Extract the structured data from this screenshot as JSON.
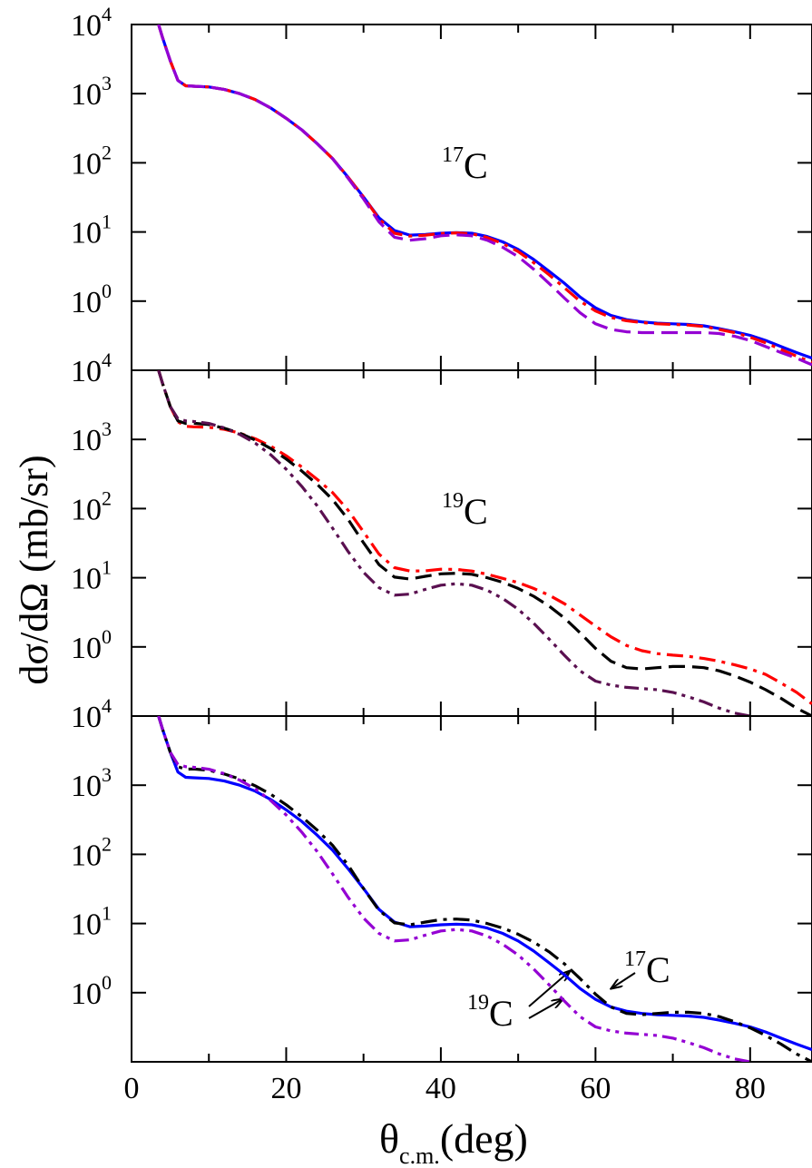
{
  "chart_data": [
    {
      "type": "line",
      "panel": "top",
      "annotation": {
        "superscript": "17",
        "text": "C"
      },
      "yscale": "log",
      "ylim": [
        0.1,
        10000
      ],
      "xlim": [
        0,
        88
      ],
      "y_tick_labels": [
        {
          "base": "10",
          "exp": "4"
        },
        {
          "base": "10",
          "exp": "3"
        },
        {
          "base": "10",
          "exp": "2"
        },
        {
          "base": "10",
          "exp": "1"
        },
        {
          "base": "10",
          "exp": "0"
        }
      ],
      "series": [
        {
          "color": "#0000ff",
          "style": "solid",
          "x": [
            3.5,
            4,
            5,
            6,
            7,
            8,
            10,
            12,
            14,
            16,
            18,
            20,
            22,
            24,
            26,
            28,
            30,
            32,
            34,
            36,
            38,
            40,
            42,
            44,
            46,
            48,
            50,
            52,
            54,
            56,
            58,
            60,
            62,
            64,
            66,
            68,
            70,
            72,
            74,
            76,
            78,
            80,
            82,
            84,
            86,
            88
          ],
          "y": [
            10000,
            6500,
            3000,
            1550,
            1300,
            1280,
            1250,
            1150,
            1000,
            820,
            620,
            440,
            300,
            190,
            115,
            62,
            32,
            16,
            10.5,
            9.0,
            9.2,
            9.6,
            9.8,
            9.6,
            8.6,
            7.2,
            5.6,
            4.0,
            2.7,
            1.8,
            1.15,
            0.8,
            0.62,
            0.54,
            0.5,
            0.48,
            0.47,
            0.46,
            0.44,
            0.4,
            0.36,
            0.32,
            0.27,
            0.22,
            0.18,
            0.15
          ]
        },
        {
          "color": "#ff0000",
          "style": "dash-dot",
          "x": [
            3.5,
            4,
            5,
            6,
            7,
            8,
            10,
            12,
            14,
            16,
            18,
            20,
            22,
            24,
            26,
            28,
            30,
            32,
            34,
            36,
            38,
            40,
            42,
            44,
            46,
            48,
            50,
            52,
            54,
            56,
            58,
            60,
            62,
            64,
            66,
            68,
            70,
            72,
            74,
            76,
            78,
            80,
            82,
            84,
            86,
            88
          ],
          "y": [
            10000,
            6500,
            3000,
            1550,
            1300,
            1280,
            1250,
            1150,
            1000,
            820,
            620,
            440,
            300,
            190,
            115,
            62,
            32,
            15.5,
            9.6,
            8.7,
            9.0,
            9.5,
            9.7,
            9.4,
            8.3,
            6.8,
            5.2,
            3.6,
            2.4,
            1.55,
            1.0,
            0.72,
            0.58,
            0.52,
            0.49,
            0.47,
            0.46,
            0.45,
            0.43,
            0.39,
            0.35,
            0.3,
            0.25,
            0.2,
            0.16,
            0.13
          ]
        },
        {
          "color": "#9400d3",
          "style": "dashed",
          "x": [
            3.5,
            4,
            5,
            6,
            7,
            8,
            10,
            12,
            14,
            16,
            18,
            20,
            22,
            24,
            26,
            28,
            30,
            32,
            34,
            36,
            38,
            40,
            42,
            44,
            46,
            48,
            50,
            52,
            54,
            56,
            58,
            60,
            62,
            64,
            66,
            68,
            70,
            72,
            74,
            76,
            78,
            80,
            82,
            84,
            86,
            88
          ],
          "y": [
            10000,
            6500,
            3000,
            1550,
            1300,
            1280,
            1250,
            1150,
            1000,
            820,
            620,
            440,
            300,
            190,
            115,
            60,
            30,
            14,
            8.4,
            7.6,
            8.0,
            8.8,
            9.1,
            8.8,
            7.6,
            6.0,
            4.4,
            2.9,
            1.8,
            1.1,
            0.68,
            0.47,
            0.39,
            0.36,
            0.35,
            0.35,
            0.35,
            0.35,
            0.35,
            0.34,
            0.31,
            0.27,
            0.22,
            0.18,
            0.15,
            0.12
          ]
        }
      ]
    },
    {
      "type": "line",
      "panel": "middle",
      "annotation": {
        "superscript": "19",
        "text": "C"
      },
      "yscale": "log",
      "ylim": [
        0.1,
        10000
      ],
      "xlim": [
        0,
        88
      ],
      "y_tick_labels": [
        {
          "base": "10",
          "exp": "4"
        },
        {
          "base": "10",
          "exp": "3"
        },
        {
          "base": "10",
          "exp": "2"
        },
        {
          "base": "10",
          "exp": "1"
        },
        {
          "base": "10",
          "exp": "0"
        }
      ],
      "series": [
        {
          "color": "#ff0000",
          "style": "dash-dot",
          "x": [
            3.5,
            4,
            5,
            6,
            7,
            8,
            10,
            12,
            14,
            16,
            18,
            20,
            22,
            24,
            26,
            28,
            30,
            32,
            34,
            36,
            38,
            40,
            42,
            44,
            46,
            48,
            50,
            52,
            54,
            56,
            58,
            60,
            62,
            64,
            66,
            68,
            70,
            72,
            74,
            76,
            78,
            80,
            82,
            84,
            86,
            88
          ],
          "y": [
            10000,
            6500,
            3000,
            1800,
            1550,
            1520,
            1500,
            1400,
            1230,
            1020,
            800,
            580,
            400,
            265,
            170,
            95,
            46,
            22,
            14,
            12.5,
            12.6,
            13.3,
            13.2,
            12.5,
            11.2,
            9.8,
            8.5,
            7.0,
            5.6,
            4.2,
            2.9,
            2.0,
            1.4,
            1.05,
            0.88,
            0.8,
            0.76,
            0.73,
            0.68,
            0.62,
            0.55,
            0.48,
            0.4,
            0.3,
            0.22,
            0.15
          ]
        },
        {
          "color": "#000000",
          "style": "dashed",
          "x": [
            3.5,
            4,
            5,
            6,
            7,
            8,
            10,
            12,
            14,
            16,
            18,
            20,
            22,
            24,
            26,
            28,
            30,
            32,
            34,
            36,
            38,
            40,
            42,
            44,
            46,
            48,
            50,
            52,
            54,
            56,
            58,
            60,
            62,
            64,
            66,
            68,
            70,
            72,
            74,
            76,
            78,
            80,
            82,
            84,
            86,
            88
          ],
          "y": [
            10000,
            6500,
            3000,
            1850,
            1700,
            1720,
            1640,
            1450,
            1230,
            980,
            740,
            520,
            350,
            225,
            135,
            70,
            32,
            15.5,
            10.2,
            9.6,
            10.5,
            11.4,
            11.6,
            11.2,
            10.0,
            8.6,
            7.0,
            5.4,
            3.9,
            2.6,
            1.6,
            0.95,
            0.62,
            0.5,
            0.48,
            0.5,
            0.52,
            0.52,
            0.5,
            0.45,
            0.38,
            0.31,
            0.24,
            0.18,
            0.13,
            0.1
          ]
        },
        {
          "color": "#5a1050",
          "style": "dash-dot-dot",
          "x": [
            3.5,
            4,
            5,
            6,
            7,
            8,
            10,
            12,
            14,
            16,
            18,
            20,
            22,
            24,
            26,
            28,
            30,
            32,
            34,
            36,
            38,
            40,
            42,
            44,
            46,
            48,
            50,
            52,
            54,
            56,
            58,
            60,
            62,
            64,
            66,
            68,
            70,
            72,
            74,
            76,
            78,
            80
          ],
          "y": [
            10000,
            6500,
            3000,
            2000,
            1850,
            1820,
            1700,
            1470,
            1180,
            880,
            600,
            370,
            210,
            110,
            52,
            24,
            12,
            7.2,
            5.6,
            5.8,
            6.8,
            7.8,
            8.2,
            7.8,
            6.6,
            5.0,
            3.5,
            2.2,
            1.3,
            0.75,
            0.45,
            0.32,
            0.28,
            0.26,
            0.25,
            0.24,
            0.22,
            0.19,
            0.16,
            0.13,
            0.11,
            0.1
          ]
        }
      ]
    },
    {
      "type": "line",
      "panel": "bottom",
      "annotations": [
        {
          "superscript": "17",
          "text": "C"
        },
        {
          "superscript": "19",
          "text": "C"
        }
      ],
      "yscale": "log",
      "ylim": [
        0.1,
        10000
      ],
      "xlim": [
        0,
        88
      ],
      "x_ticks": [
        0,
        20,
        40,
        60,
        80
      ],
      "y_tick_labels": [
        {
          "base": "10",
          "exp": "4"
        },
        {
          "base": "10",
          "exp": "3"
        },
        {
          "base": "10",
          "exp": "2"
        },
        {
          "base": "10",
          "exp": "1"
        },
        {
          "base": "10",
          "exp": "0"
        }
      ],
      "series": [
        {
          "color": "#0000ff",
          "style": "solid",
          "x": [
            3.5,
            4,
            5,
            6,
            7,
            8,
            10,
            12,
            14,
            16,
            18,
            20,
            22,
            24,
            26,
            28,
            30,
            32,
            34,
            36,
            38,
            40,
            42,
            44,
            46,
            48,
            50,
            52,
            54,
            56,
            58,
            60,
            62,
            64,
            66,
            68,
            70,
            72,
            74,
            76,
            78,
            80,
            82,
            84,
            86,
            88
          ],
          "y": [
            10000,
            6500,
            3000,
            1550,
            1300,
            1280,
            1250,
            1150,
            1000,
            820,
            620,
            440,
            300,
            190,
            115,
            62,
            32,
            16,
            10.5,
            9.0,
            9.2,
            9.6,
            9.8,
            9.6,
            8.6,
            7.2,
            5.6,
            4.0,
            2.7,
            1.8,
            1.15,
            0.8,
            0.62,
            0.54,
            0.5,
            0.48,
            0.47,
            0.46,
            0.44,
            0.4,
            0.36,
            0.32,
            0.27,
            0.22,
            0.18,
            0.15
          ]
        },
        {
          "color": "#000000",
          "style": "dash-dot",
          "x": [
            3.5,
            4,
            5,
            6,
            7,
            8,
            10,
            12,
            14,
            16,
            18,
            20,
            22,
            24,
            26,
            28,
            30,
            32,
            34,
            36,
            38,
            40,
            42,
            44,
            46,
            48,
            50,
            52,
            54,
            56,
            58,
            60,
            62,
            64,
            66,
            68,
            70,
            72,
            74,
            76,
            78,
            80,
            82,
            84,
            86,
            88
          ],
          "y": [
            10000,
            6500,
            3000,
            1850,
            1700,
            1720,
            1640,
            1450,
            1230,
            980,
            740,
            520,
            350,
            225,
            135,
            70,
            32,
            15.5,
            10.2,
            9.6,
            10.5,
            11.4,
            11.6,
            11.2,
            10.0,
            8.6,
            7.0,
            5.4,
            3.9,
            2.6,
            1.6,
            0.95,
            0.62,
            0.5,
            0.48,
            0.5,
            0.52,
            0.52,
            0.5,
            0.45,
            0.38,
            0.31,
            0.24,
            0.18,
            0.13,
            0.1
          ]
        },
        {
          "color": "#9400d3",
          "style": "dash-dot-dot",
          "x": [
            3.5,
            4,
            5,
            6,
            7,
            8,
            10,
            12,
            14,
            16,
            18,
            20,
            22,
            24,
            26,
            28,
            30,
            32,
            34,
            36,
            38,
            40,
            42,
            44,
            46,
            48,
            50,
            52,
            54,
            56,
            58,
            60,
            62,
            64,
            66,
            68,
            70,
            72,
            74,
            76,
            78,
            80
          ],
          "y": [
            10000,
            6500,
            3000,
            2000,
            1850,
            1820,
            1700,
            1470,
            1180,
            880,
            600,
            370,
            210,
            110,
            52,
            24,
            12,
            7.2,
            5.6,
            5.8,
            6.8,
            7.8,
            8.2,
            7.8,
            6.6,
            5.0,
            3.5,
            2.2,
            1.3,
            0.75,
            0.45,
            0.32,
            0.28,
            0.26,
            0.25,
            0.24,
            0.22,
            0.19,
            0.16,
            0.13,
            0.11,
            0.1
          ]
        }
      ]
    }
  ],
  "ylabel": "dσ/dΩ (mb/sr)",
  "xlabel": {
    "main": "θ",
    "subscript": "c.m.",
    "rest": "(deg)"
  }
}
